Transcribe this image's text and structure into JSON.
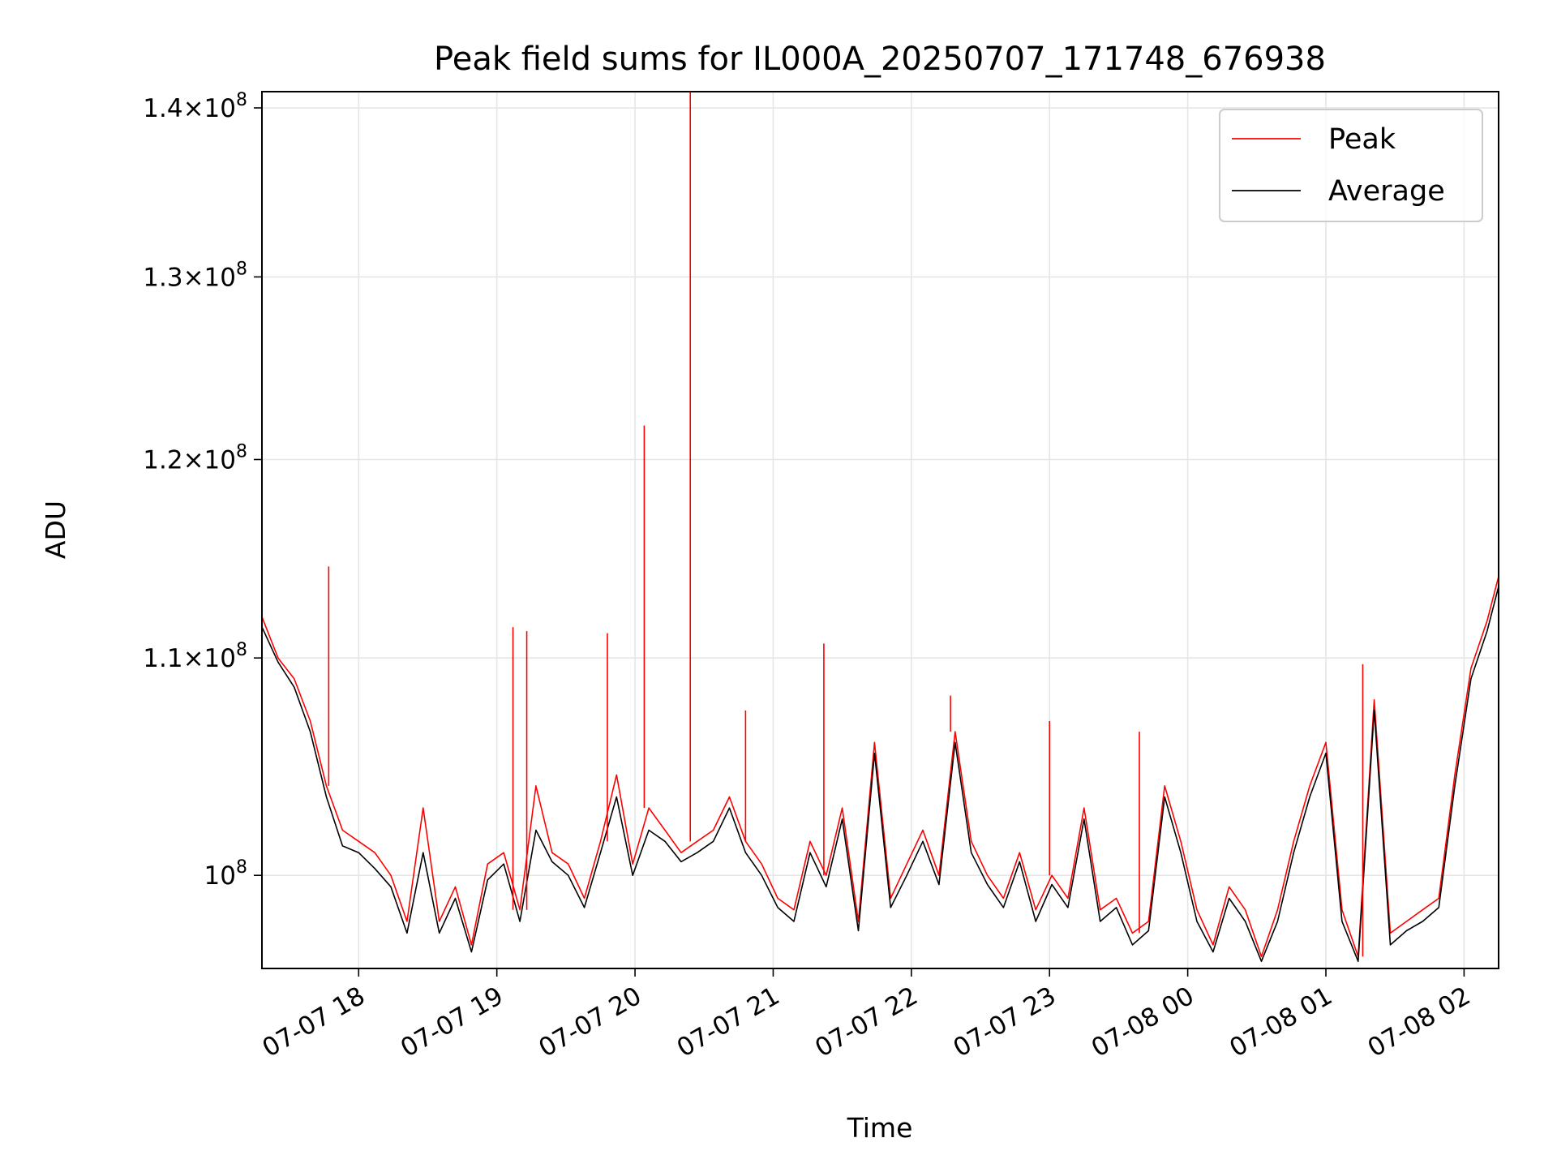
{
  "chart_data": {
    "type": "line",
    "title": "Peak field sums for IL000A_20250707_171748_676938",
    "xlabel": "Time",
    "ylabel": "ADU",
    "yscale": "log",
    "grid": true,
    "legend_position": "top-right",
    "x_range": [
      "07-07 17:18",
      "07-08 02:15"
    ],
    "ylim": [
      96000000,
      141000000
    ],
    "x_ticks": [
      {
        "x": "07-07 18:00",
        "label": "07-07 18"
      },
      {
        "x": "07-07 19:00",
        "label": "07-07 19"
      },
      {
        "x": "07-07 20:00",
        "label": "07-07 20"
      },
      {
        "x": "07-07 21:00",
        "label": "07-07 21"
      },
      {
        "x": "07-07 22:00",
        "label": "07-07 22"
      },
      {
        "x": "07-07 23:00",
        "label": "07-07 23"
      },
      {
        "x": "07-08 00:00",
        "label": "07-08 00"
      },
      {
        "x": "07-08 01:00",
        "label": "07-08 01"
      },
      {
        "x": "07-08 02:00",
        "label": "07-08 02"
      }
    ],
    "y_ticks": [
      {
        "value": 100000000,
        "mantissa": "",
        "exp": "8"
      },
      {
        "value": 110000000,
        "mantissa": "1.1",
        "exp": "8"
      },
      {
        "value": 120000000,
        "mantissa": "1.2",
        "exp": "8"
      },
      {
        "value": 130000000,
        "mantissa": "1.3",
        "exp": "8"
      },
      {
        "value": 140000000,
        "mantissa": "1.4",
        "exp": "8"
      }
    ],
    "times": [
      "07-07 17:18",
      "07-07 17:25",
      "07-07 17:32",
      "07-07 17:39",
      "07-07 17:46",
      "07-07 17:53",
      "07-07 18:00",
      "07-07 18:07",
      "07-07 18:14",
      "07-07 18:21",
      "07-07 18:28",
      "07-07 18:35",
      "07-07 18:42",
      "07-07 18:49",
      "07-07 18:56",
      "07-07 19:03",
      "07-07 19:10",
      "07-07 19:17",
      "07-07 19:24",
      "07-07 19:31",
      "07-07 19:38",
      "07-07 19:45",
      "07-07 19:52",
      "07-07 19:59",
      "07-07 20:06",
      "07-07 20:13",
      "07-07 20:20",
      "07-07 20:27",
      "07-07 20:34",
      "07-07 20:41",
      "07-07 20:48",
      "07-07 20:55",
      "07-07 21:02",
      "07-07 21:09",
      "07-07 21:16",
      "07-07 21:23",
      "07-07 21:30",
      "07-07 21:37",
      "07-07 21:44",
      "07-07 21:51",
      "07-07 21:58",
      "07-07 22:05",
      "07-07 22:12",
      "07-07 22:19",
      "07-07 22:26",
      "07-07 22:33",
      "07-07 22:40",
      "07-07 22:47",
      "07-07 22:54",
      "07-07 23:01",
      "07-07 23:08",
      "07-07 23:15",
      "07-07 23:22",
      "07-07 23:29",
      "07-07 23:36",
      "07-07 23:43",
      "07-07 23:50",
      "07-07 23:57",
      "07-08 00:04",
      "07-08 00:11",
      "07-08 00:18",
      "07-08 00:25",
      "07-08 00:32",
      "07-08 00:39",
      "07-08 00:46",
      "07-08 00:53",
      "07-08 01:00",
      "07-08 01:07",
      "07-08 01:14",
      "07-08 01:21",
      "07-08 01:28",
      "07-08 01:35",
      "07-08 01:42",
      "07-08 01:49",
      "07-08 01:56",
      "07-08 02:03",
      "07-08 02:10",
      "07-08 02:15"
    ],
    "series": [
      {
        "name": "Peak",
        "color": "#ff0000",
        "values": [
          112000000,
          110000000,
          109000000,
          107000000,
          104000000,
          102000000,
          101500000,
          101000000,
          100000000,
          98000000,
          103000000,
          98000000,
          99500000,
          97000000,
          100500000,
          101000000,
          98500000,
          104000000,
          101000000,
          100500000,
          99000000,
          101500000,
          104500000,
          100500000,
          103000000,
          102000000,
          101000000,
          101500000,
          102000000,
          103500000,
          101500000,
          100500000,
          99000000,
          98500000,
          101500000,
          100000000,
          103000000,
          98000000,
          106000000,
          99000000,
          100500000,
          102000000,
          100000000,
          106500000,
          101500000,
          100000000,
          99000000,
          101000000,
          98500000,
          100000000,
          99000000,
          103000000,
          98500000,
          99000000,
          97500000,
          98000000,
          104000000,
          101500000,
          98500000,
          97000000,
          99500000,
          98500000,
          96500000,
          98500000,
          101500000,
          104000000,
          106000000,
          98500000,
          96500000,
          108000000,
          97500000,
          98000000,
          98500000,
          99000000,
          104500000,
          109500000,
          111800000,
          114000000
        ]
      },
      {
        "name": "Average",
        "color": "#000000",
        "values": [
          111500000,
          109800000,
          108600000,
          106500000,
          103500000,
          101300000,
          101000000,
          100300000,
          99500000,
          97500000,
          101000000,
          97500000,
          99000000,
          96700000,
          99800000,
          100500000,
          98000000,
          102000000,
          100600000,
          100000000,
          98600000,
          101000000,
          103500000,
          100000000,
          102000000,
          101500000,
          100600000,
          101000000,
          101500000,
          103000000,
          101000000,
          100000000,
          98600000,
          98000000,
          101000000,
          99500000,
          102500000,
          97600000,
          105500000,
          98600000,
          100000000,
          101500000,
          99600000,
          106000000,
          101000000,
          99600000,
          98600000,
          100600000,
          98000000,
          99600000,
          98600000,
          102500000,
          98000000,
          98600000,
          97000000,
          97600000,
          103500000,
          101000000,
          98000000,
          96700000,
          99000000,
          98000000,
          96300000,
          98000000,
          101000000,
          103500000,
          105500000,
          98000000,
          96300000,
          107500000,
          97000000,
          97600000,
          98000000,
          98600000,
          104000000,
          109000000,
          111300000,
          113500000
        ]
      }
    ],
    "spikes": [
      {
        "x": "07-07 17:47",
        "value": 114500000
      },
      {
        "x": "07-07 19:07",
        "value": 111500000
      },
      {
        "x": "07-07 19:13",
        "value": 111300000
      },
      {
        "x": "07-07 19:48",
        "value": 111200000
      },
      {
        "x": "07-07 20:04",
        "value": 121800000
      },
      {
        "x": "07-07 20:24",
        "value": 141000000
      },
      {
        "x": "07-07 20:48",
        "value": 107500000
      },
      {
        "x": "07-07 21:22",
        "value": 110700000
      },
      {
        "x": "07-07 22:17",
        "value": 108200000
      },
      {
        "x": "07-07 23:00",
        "value": 107000000
      },
      {
        "x": "07-07 23:39",
        "value": 106500000
      },
      {
        "x": "07-08 01:16",
        "value": 109700000
      }
    ]
  }
}
